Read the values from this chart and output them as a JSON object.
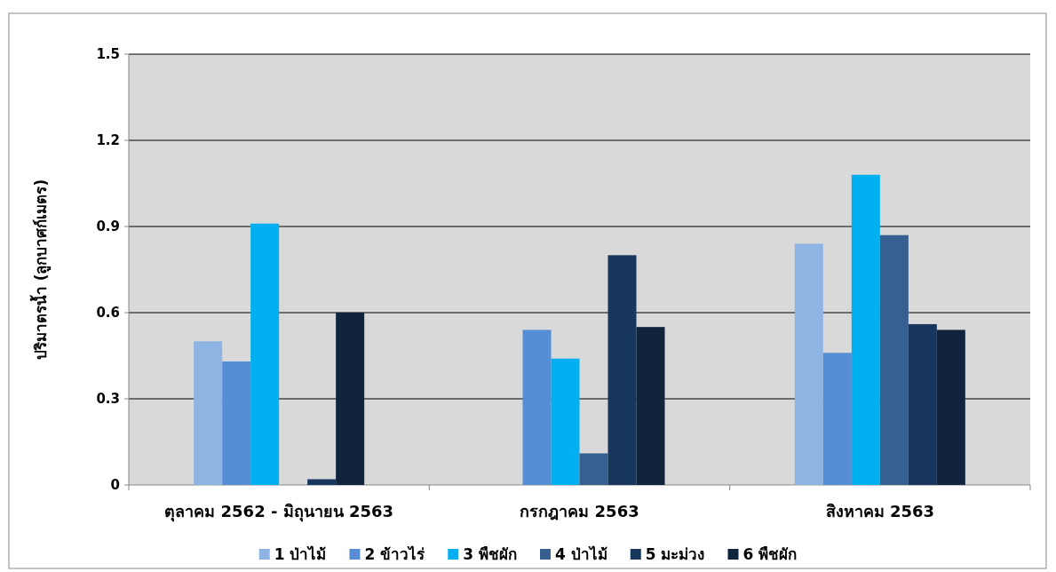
{
  "chart_data": {
    "type": "bar",
    "ylabel": "ปริมาตรน้ำ (ลูกบาศก์เมตร)",
    "categories": [
      "ตุลาคม 2562 - มิถุนายน 2563",
      "กรกฎาคม 2563",
      "สิงหาคม 2563"
    ],
    "series": [
      {
        "name": "1 ป่าไม้",
        "color": "#8eb4e3",
        "values": [
          0.5,
          null,
          0.84
        ]
      },
      {
        "name": "2 ข้าวไร่",
        "color": "#558ed5",
        "values": [
          0.43,
          0.54,
          0.46
        ]
      },
      {
        "name": "3 พืชผัก",
        "color": "#00b0f0",
        "values": [
          0.91,
          0.44,
          1.08
        ]
      },
      {
        "name": "4 ป่าไม้",
        "color": "#376092",
        "values": [
          null,
          0.11,
          0.87
        ]
      },
      {
        "name": "5 มะม่วง",
        "color": "#17375e",
        "values": [
          0.02,
          0.8,
          0.56
        ]
      },
      {
        "name": "6 พืชผัก",
        "color": "#10243e",
        "values": [
          0.6,
          0.55,
          0.54
        ]
      }
    ],
    "ylim": [
      0,
      1.5
    ],
    "yticks": [
      0,
      0.3,
      0.6,
      0.9,
      1.2,
      1.5
    ],
    "grid": "y",
    "legend": "bottom"
  }
}
